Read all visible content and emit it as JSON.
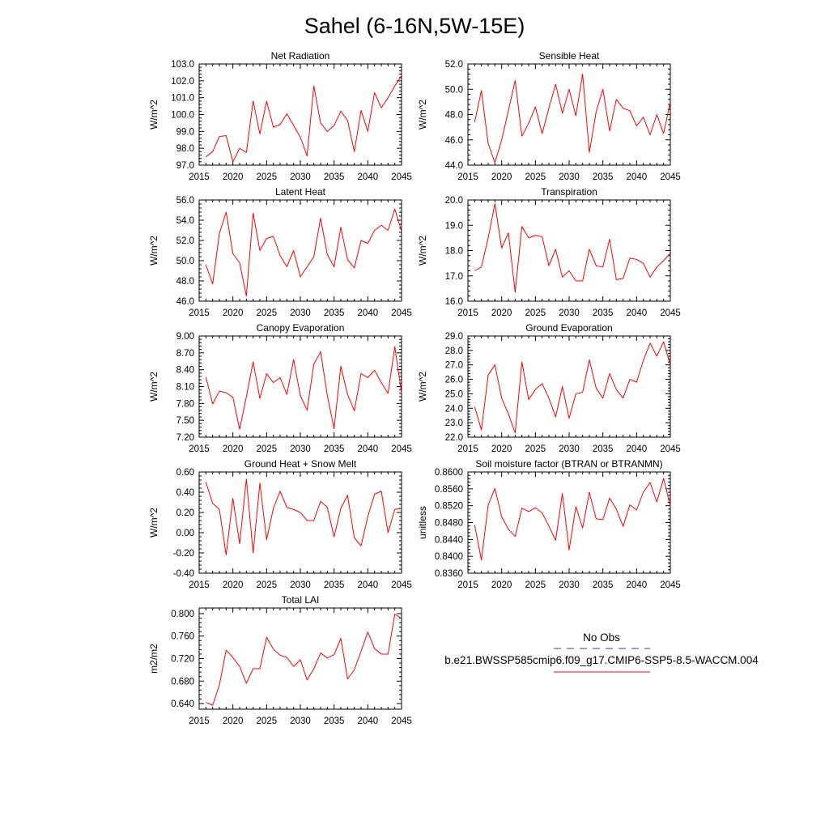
{
  "title": "Sahel (6-16N,5W-15E)",
  "chart_data": [
    {
      "type": "line",
      "title": "Net Radiation",
      "ylabel": "W/m^2",
      "xlim": [
        2015,
        2045
      ],
      "ylim": [
        97.0,
        103.0
      ],
      "xticks": [
        2015,
        2020,
        2025,
        2030,
        2035,
        2040,
        2045
      ],
      "xtick_labels": [
        "2015",
        "2020",
        "2025",
        "2030",
        "2035",
        "2040",
        "2045"
      ],
      "yticks": [
        97.0,
        98.0,
        99.0,
        100.0,
        101.0,
        102.0,
        103.0
      ],
      "ytick_labels": [
        "97.0",
        "98.0",
        "99.0",
        "100.0",
        "101.0",
        "102.0",
        "103.0"
      ],
      "series": [
        {
          "name": "b.e21.BWSSP585cmip6.f09_g17.CMIP6-SSP5-8.5-WACCM.004",
          "color": "#ff0000",
          "x": [
            2016,
            2017,
            2018,
            2019,
            2020,
            2021,
            2022,
            2023,
            2024,
            2025,
            2026,
            2027,
            2028,
            2029,
            2030,
            2031,
            2032,
            2033,
            2034,
            2035,
            2036,
            2037,
            2038,
            2039,
            2040,
            2041,
            2042,
            2043,
            2044,
            2045
          ],
          "values": [
            97.5,
            97.8,
            98.7,
            98.75,
            97.2,
            98.0,
            97.75,
            100.8,
            98.85,
            100.8,
            99.25,
            99.4,
            100.05,
            99.35,
            98.65,
            97.55,
            101.7,
            99.5,
            99.0,
            99.35,
            100.2,
            99.65,
            97.8,
            100.25,
            99.0,
            101.3,
            100.4,
            101.0,
            101.7,
            102.3
          ]
        }
      ]
    },
    {
      "type": "line",
      "title": "Sensible Heat",
      "ylabel": "W/m^2",
      "xlim": [
        2015,
        2045
      ],
      "ylim": [
        44.0,
        52.0
      ],
      "xticks": [
        2015,
        2020,
        2025,
        2030,
        2035,
        2040,
        2045
      ],
      "xtick_labels": [
        "2015",
        "2020",
        "2025",
        "2030",
        "2035",
        "2040",
        "2045"
      ],
      "yticks": [
        44.0,
        46.0,
        48.0,
        50.0,
        52.0
      ],
      "ytick_labels": [
        "44.0",
        "46.0",
        "48.0",
        "50.0",
        "52.0"
      ],
      "series": [
        {
          "name": "b.e21.BWSSP585cmip6.f09_g17.CMIP6-SSP5-8.5-WACCM.004",
          "color": "#ff0000",
          "x": [
            2016,
            2017,
            2018,
            2019,
            2020,
            2021,
            2022,
            2023,
            2024,
            2025,
            2026,
            2027,
            2028,
            2029,
            2030,
            2031,
            2032,
            2033,
            2034,
            2035,
            2036,
            2037,
            2038,
            2039,
            2040,
            2041,
            2042,
            2043,
            2044,
            2045
          ],
          "values": [
            47.4,
            49.9,
            45.7,
            44.2,
            46.0,
            48.3,
            50.7,
            46.3,
            47.3,
            48.6,
            46.5,
            48.5,
            50.4,
            48.1,
            50.0,
            47.9,
            51.2,
            45.0,
            48.2,
            50.0,
            46.7,
            49.2,
            48.5,
            48.3,
            47.1,
            47.8,
            46.4,
            48.0,
            46.5,
            49.0
          ]
        }
      ]
    },
    {
      "type": "line",
      "title": "Latent Heat",
      "ylabel": "W/m^2",
      "xlim": [
        2015,
        2045
      ],
      "ylim": [
        46.0,
        56.0
      ],
      "xticks": [
        2015,
        2020,
        2025,
        2030,
        2035,
        2040,
        2045
      ],
      "xtick_labels": [
        "2015",
        "2020",
        "2025",
        "2030",
        "2035",
        "2040",
        "2045"
      ],
      "yticks": [
        46.0,
        48.0,
        50.0,
        52.0,
        54.0,
        56.0
      ],
      "ytick_labels": [
        "46.0",
        "48.0",
        "50.0",
        "52.0",
        "54.0",
        "56.0"
      ],
      "series": [
        {
          "name": "b.e21.BWSSP585cmip6.f09_g17.CMIP6-SSP5-8.5-WACCM.004",
          "color": "#ff0000",
          "x": [
            2016,
            2017,
            2018,
            2019,
            2020,
            2021,
            2022,
            2023,
            2024,
            2025,
            2026,
            2027,
            2028,
            2029,
            2030,
            2031,
            2032,
            2033,
            2034,
            2035,
            2036,
            2037,
            2038,
            2039,
            2040,
            2041,
            2042,
            2043,
            2044,
            2045
          ],
          "values": [
            49.6,
            47.7,
            52.7,
            54.8,
            50.7,
            49.8,
            46.5,
            54.7,
            51.0,
            52.2,
            52.4,
            50.5,
            49.4,
            51.0,
            48.4,
            49.4,
            50.4,
            54.2,
            50.6,
            49.4,
            53.3,
            50.1,
            49.3,
            52.0,
            51.7,
            53.0,
            53.5,
            53.0,
            55.1,
            52.9
          ]
        }
      ]
    },
    {
      "type": "line",
      "title": "Transpiration",
      "ylabel": "W/m^2",
      "xlim": [
        2015,
        2045
      ],
      "ylim": [
        16.0,
        20.0
      ],
      "xticks": [
        2015,
        2020,
        2025,
        2030,
        2035,
        2040,
        2045
      ],
      "xtick_labels": [
        "2015",
        "2020",
        "2025",
        "2030",
        "2035",
        "2040",
        "2045"
      ],
      "yticks": [
        16.0,
        17.0,
        18.0,
        19.0,
        20.0
      ],
      "ytick_labels": [
        "16.0",
        "17.0",
        "18.0",
        "19.0",
        "20.0"
      ],
      "series": [
        {
          "name": "b.e21.BWSSP585cmip6.f09_g17.CMIP6-SSP5-8.5-WACCM.004",
          "color": "#ff0000",
          "x": [
            2016,
            2017,
            2018,
            2019,
            2020,
            2021,
            2022,
            2023,
            2024,
            2025,
            2026,
            2027,
            2028,
            2029,
            2030,
            2031,
            2032,
            2033,
            2034,
            2035,
            2036,
            2037,
            2038,
            2039,
            2040,
            2041,
            2042,
            2043,
            2044,
            2045
          ],
          "values": [
            17.2,
            17.35,
            18.5,
            19.85,
            18.1,
            18.7,
            16.35,
            18.95,
            18.5,
            18.6,
            18.55,
            17.4,
            18.05,
            16.95,
            17.2,
            16.8,
            16.8,
            18.05,
            17.4,
            17.35,
            18.45,
            16.85,
            16.9,
            17.7,
            17.65,
            17.5,
            16.95,
            17.35,
            17.6,
            17.9
          ]
        }
      ]
    },
    {
      "type": "line",
      "title": "Canopy Evaporation",
      "ylabel": "W/m^2",
      "xlim": [
        2015,
        2045
      ],
      "ylim": [
        7.2,
        9.0
      ],
      "xticks": [
        2015,
        2020,
        2025,
        2030,
        2035,
        2040,
        2045
      ],
      "xtick_labels": [
        "2015",
        "2020",
        "2025",
        "2030",
        "2035",
        "2040",
        "2045"
      ],
      "yticks": [
        7.2,
        7.5,
        7.8,
        8.1,
        8.4,
        8.7,
        9.0
      ],
      "ytick_labels": [
        "7.20",
        "7.50",
        "7.80",
        "8.10",
        "8.40",
        "8.70",
        "9.00"
      ],
      "series": [
        {
          "name": "b.e21.BWSSP585cmip6.f09_g17.CMIP6-SSP5-8.5-WACCM.004",
          "color": "#ff0000",
          "x": [
            2016,
            2017,
            2018,
            2019,
            2020,
            2021,
            2022,
            2023,
            2024,
            2025,
            2026,
            2027,
            2028,
            2029,
            2030,
            2031,
            2032,
            2033,
            2034,
            2035,
            2036,
            2037,
            2038,
            2039,
            2040,
            2041,
            2042,
            2043,
            2044,
            2045
          ],
          "values": [
            8.27,
            7.79,
            8.02,
            7.99,
            7.91,
            7.34,
            7.92,
            8.54,
            7.89,
            8.33,
            8.17,
            8.26,
            7.96,
            8.58,
            7.94,
            7.68,
            8.5,
            8.72,
            7.94,
            7.35,
            8.46,
            7.96,
            7.67,
            8.33,
            8.26,
            8.39,
            8.17,
            7.98,
            8.81,
            7.98
          ]
        }
      ]
    },
    {
      "type": "line",
      "title": "Ground Evaporation",
      "ylabel": "W/m^2",
      "xlim": [
        2015,
        2045
      ],
      "ylim": [
        22.0,
        29.0
      ],
      "xticks": [
        2015,
        2020,
        2025,
        2030,
        2035,
        2040,
        2045
      ],
      "xtick_labels": [
        "2015",
        "2020",
        "2025",
        "2030",
        "2035",
        "2040",
        "2045"
      ],
      "yticks": [
        22.0,
        23.0,
        24.0,
        25.0,
        26.0,
        27.0,
        28.0,
        29.0
      ],
      "ytick_labels": [
        "22.0",
        "23.0",
        "24.0",
        "25.0",
        "26.0",
        "27.0",
        "28.0",
        "29.0"
      ],
      "series": [
        {
          "name": "b.e21.BWSSP585cmip6.f09_g17.CMIP6-SSP5-8.5-WACCM.004",
          "color": "#ff0000",
          "x": [
            2016,
            2017,
            2018,
            2019,
            2020,
            2021,
            2022,
            2023,
            2024,
            2025,
            2026,
            2027,
            2028,
            2029,
            2030,
            2031,
            2032,
            2033,
            2034,
            2035,
            2036,
            2037,
            2038,
            2039,
            2040,
            2041,
            2042,
            2043,
            2044,
            2045
          ],
          "values": [
            24.1,
            22.5,
            26.3,
            27.0,
            24.7,
            23.6,
            22.3,
            27.2,
            24.6,
            25.3,
            25.7,
            24.7,
            23.4,
            25.5,
            23.3,
            25.0,
            25.1,
            27.35,
            25.4,
            24.7,
            26.4,
            25.3,
            24.7,
            26.0,
            25.8,
            27.3,
            28.5,
            27.6,
            28.6,
            27.0
          ]
        }
      ]
    },
    {
      "type": "line",
      "title": "Ground Heat + Snow Melt",
      "ylabel": "W/m^2",
      "xlim": [
        2015,
        2045
      ],
      "ylim": [
        -0.4,
        0.6
      ],
      "xticks": [
        2015,
        2020,
        2025,
        2030,
        2035,
        2040,
        2045
      ],
      "xtick_labels": [
        "2015",
        "2020",
        "2025",
        "2030",
        "2035",
        "2040",
        "2045"
      ],
      "yticks": [
        -0.4,
        -0.2,
        0.0,
        0.2,
        0.4,
        0.6
      ],
      "ytick_labels": [
        "-0.40",
        "-0.20",
        "0.00",
        "0.20",
        "0.40",
        "0.60"
      ],
      "series": [
        {
          "name": "b.e21.BWSSP585cmip6.f09_g17.CMIP6-SSP5-8.5-WACCM.004",
          "color": "#ff0000",
          "x": [
            2016,
            2017,
            2018,
            2019,
            2020,
            2021,
            2022,
            2023,
            2024,
            2025,
            2026,
            2027,
            2028,
            2029,
            2030,
            2031,
            2032,
            2033,
            2034,
            2035,
            2036,
            2037,
            2038,
            2039,
            2040,
            2041,
            2042,
            2043,
            2044,
            2045
          ],
          "values": [
            0.5,
            0.29,
            0.23,
            -0.22,
            0.34,
            -0.11,
            0.53,
            -0.2,
            0.49,
            -0.07,
            0.24,
            0.41,
            0.25,
            0.23,
            0.2,
            0.12,
            0.12,
            0.31,
            0.25,
            -0.04,
            0.24,
            0.37,
            -0.05,
            -0.13,
            0.16,
            0.38,
            0.41,
            0.0,
            0.23,
            0.24
          ]
        }
      ]
    },
    {
      "type": "line",
      "title": "Soil moisture factor (BTRAN or BTRANMN)",
      "ylabel": "unitless",
      "xlim": [
        2015,
        2045
      ],
      "ylim": [
        0.836,
        0.86
      ],
      "xticks": [
        2015,
        2020,
        2025,
        2030,
        2035,
        2040,
        2045
      ],
      "xtick_labels": [
        "2015",
        "2020",
        "2025",
        "2030",
        "2035",
        "2040",
        "2045"
      ],
      "yticks": [
        0.836,
        0.84,
        0.844,
        0.848,
        0.852,
        0.856,
        0.86
      ],
      "ytick_labels": [
        "0.8360",
        "0.8400",
        "0.8440",
        "0.8480",
        "0.8520",
        "0.8560",
        "0.8600"
      ],
      "series": [
        {
          "name": "b.e21.BWSSP585cmip6.f09_g17.CMIP6-SSP5-8.5-WACCM.004",
          "color": "#ff0000",
          "x": [
            2016,
            2017,
            2018,
            2019,
            2020,
            2021,
            2022,
            2023,
            2024,
            2025,
            2026,
            2027,
            2028,
            2029,
            2030,
            2031,
            2032,
            2033,
            2034,
            2035,
            2036,
            2037,
            2038,
            2039,
            2040,
            2041,
            2042,
            2043,
            2044,
            2045
          ],
          "values": [
            0.8474,
            0.8391,
            0.8522,
            0.8561,
            0.8494,
            0.8464,
            0.8447,
            0.8514,
            0.8506,
            0.8515,
            0.8503,
            0.8472,
            0.8438,
            0.8549,
            0.8415,
            0.8518,
            0.8467,
            0.8552,
            0.8489,
            0.8487,
            0.8538,
            0.8512,
            0.8471,
            0.8522,
            0.851,
            0.8552,
            0.8575,
            0.8529,
            0.8585,
            0.8519
          ]
        }
      ]
    },
    {
      "type": "line",
      "title": "Total LAI",
      "ylabel": "m2/m2",
      "xlim": [
        2015,
        2045
      ],
      "ylim": [
        0.63,
        0.81
      ],
      "xticks": [
        2015,
        2020,
        2025,
        2030,
        2035,
        2040,
        2045
      ],
      "xtick_labels": [
        "2015",
        "2020",
        "2025",
        "2030",
        "2035",
        "2040",
        "2045"
      ],
      "yticks": [
        0.64,
        0.68,
        0.72,
        0.76,
        0.8
      ],
      "ytick_labels": [
        "0.640",
        "0.680",
        "0.720",
        "0.760",
        "0.800"
      ],
      "series": [
        {
          "name": "b.e21.BWSSP585cmip6.f09_g17.CMIP6-SSP5-8.5-WACCM.004",
          "color": "#ff0000",
          "x": [
            2016,
            2017,
            2018,
            2019,
            2020,
            2021,
            2022,
            2023,
            2024,
            2025,
            2026,
            2027,
            2028,
            2029,
            2030,
            2031,
            2032,
            2033,
            2034,
            2035,
            2036,
            2037,
            2038,
            2039,
            2040,
            2041,
            2042,
            2043,
            2044,
            2045
          ],
          "values": [
            0.642,
            0.637,
            0.673,
            0.735,
            0.722,
            0.706,
            0.676,
            0.702,
            0.702,
            0.758,
            0.737,
            0.726,
            0.722,
            0.706,
            0.718,
            0.682,
            0.702,
            0.73,
            0.721,
            0.727,
            0.756,
            0.684,
            0.7,
            0.733,
            0.767,
            0.738,
            0.728,
            0.728,
            0.799,
            0.791
          ]
        }
      ]
    }
  ],
  "legend": {
    "entries": [
      {
        "label": "No Obs",
        "color": "#3b3b8f",
        "style": "dashed"
      },
      {
        "label": "b.e21.BWSSP585cmip6.f09_g17.CMIP6-SSP5-8.5-WACCM.004",
        "color": "#ff0000",
        "style": "solid"
      }
    ]
  }
}
